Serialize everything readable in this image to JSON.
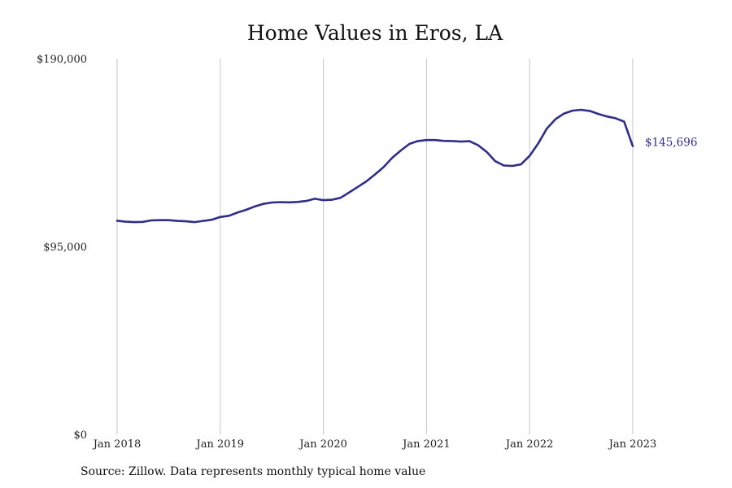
{
  "chart_data": {
    "type": "line",
    "title": "Home Values in Eros, LA",
    "xlabel": "",
    "ylabel": "",
    "x_tick_labels": [
      "Jan 2018",
      "Jan 2019",
      "Jan 2020",
      "Jan 2021",
      "Jan 2022",
      "Jan 2023"
    ],
    "y_tick_labels": [
      "$0",
      "$95,000",
      "$190,000"
    ],
    "y_ticks": [
      0,
      95000,
      190000
    ],
    "ylim": [
      0,
      190000
    ],
    "xlim": [
      "2018-01",
      "2023-01"
    ],
    "grid": "vertical",
    "line_color": "#2e2e8a",
    "grid_color": "#c4c4c4",
    "end_label": "$145,696",
    "series": [
      {
        "x": [
          "2018-01",
          "2018-02",
          "2018-03",
          "2018-04",
          "2018-05",
          "2018-06",
          "2018-07",
          "2018-08",
          "2018-09",
          "2018-10",
          "2018-11",
          "2018-12",
          "2019-01",
          "2019-02",
          "2019-03",
          "2019-04",
          "2019-05",
          "2019-06",
          "2019-07",
          "2019-08",
          "2019-09",
          "2019-10",
          "2019-11",
          "2019-12",
          "2020-01",
          "2020-02",
          "2020-03",
          "2020-04",
          "2020-05",
          "2020-06",
          "2020-07",
          "2020-08",
          "2020-09",
          "2020-10",
          "2020-11",
          "2020-12",
          "2021-01",
          "2021-02",
          "2021-03",
          "2021-04",
          "2021-05",
          "2021-06",
          "2021-07",
          "2021-08",
          "2021-09",
          "2021-10",
          "2021-11",
          "2021-12",
          "2022-01",
          "2022-02",
          "2022-03",
          "2022-04",
          "2022-05",
          "2022-06",
          "2022-07",
          "2022-08",
          "2022-09",
          "2022-10",
          "2022-11",
          "2022-12",
          "2023-01"
        ],
        "values": [
          108000,
          107500,
          107300,
          107400,
          108200,
          108300,
          108300,
          107900,
          107700,
          107300,
          107900,
          108500,
          109900,
          110500,
          112100,
          113500,
          115200,
          116500,
          117200,
          117400,
          117300,
          117500,
          118000,
          119100,
          118400,
          118600,
          119600,
          122300,
          125100,
          127900,
          131400,
          135100,
          139800,
          143500,
          146800,
          148300,
          148800,
          148800,
          148400,
          148300,
          148000,
          148200,
          146200,
          142800,
          138100,
          135900,
          135700,
          136500,
          140800,
          147100,
          154600,
          159300,
          162200,
          163700,
          164100,
          163500,
          162000,
          160700,
          159800,
          158100,
          145696
        ]
      }
    ]
  },
  "footer": {
    "source": "Source: Zillow. Data represents monthly typical home value"
  }
}
